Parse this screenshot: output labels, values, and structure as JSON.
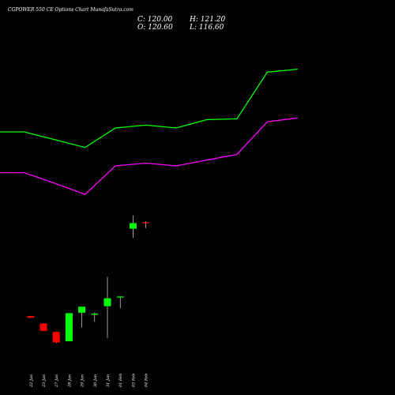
{
  "chart_data": {
    "type": "candlestick",
    "title": "CGPOWER 550 CE Options Chart MunafaSutra.com",
    "ohlc_readout": {
      "close_label": "C: 120.00",
      "open_label": "O: 120.60",
      "high_label": "H: 121.20",
      "low_label": "L: 116.60"
    },
    "categories": [
      "22 Jan",
      "23 Jan",
      "27 Jan",
      "28 Jan",
      "29 Jan",
      "30 Jan",
      "31 Jan",
      "01 Feb",
      "03 Feb",
      "04 Feb"
    ],
    "candles": [
      {
        "date": "22 Jan",
        "open": 17.0,
        "high": 17.2,
        "low": 15.8,
        "close": 15.9
      },
      {
        "date": "23 Jan",
        "open": 12.0,
        "high": 12.2,
        "low": 6.9,
        "close": 7.0
      },
      {
        "date": "27 Jan",
        "open": 6.3,
        "high": 6.5,
        "low": -1.2,
        "close": -0.8
      },
      {
        "date": "28 Jan",
        "open": 0.0,
        "high": 19.0,
        "low": 0.0,
        "close": 19.0
      },
      {
        "date": "29 Jan",
        "open": 19.3,
        "high": 23.4,
        "low": 9.3,
        "close": 23.4
      },
      {
        "date": "30 Jan",
        "open": 18.0,
        "high": 19.5,
        "low": 13.2,
        "close": 18.7
      },
      {
        "date": "31 Jan",
        "open": 23.7,
        "high": 43.5,
        "low": 2.0,
        "close": 29.1
      },
      {
        "date": "01 Feb",
        "open": 29.6,
        "high": 30.3,
        "low": 22.4,
        "close": 30.3
      },
      {
        "date": "03 Feb",
        "open": 76.2,
        "high": 85.2,
        "low": 70.0,
        "close": 80.0
      },
      {
        "date": "04 Feb",
        "open": 80.6,
        "high": 81.2,
        "low": 76.6,
        "close": 80.0
      }
    ],
    "upper_band": [
      141.7,
      141.7,
      136.5,
      131.2,
      144.4,
      146.3,
      144.4,
      150.0,
      150.6,
      182.2,
      184.2
    ],
    "lower_band": [
      114.1,
      114.1,
      107.0,
      99.4,
      118.7,
      120.6,
      118.7,
      122.6,
      126.5,
      148.6,
      151.2
    ],
    "band_x": [
      "",
      "22 Jan",
      "",
      "27 Jan",
      "28 Jan",
      "",
      "",
      "",
      "",
      "",
      ""
    ],
    "ylim": [
      -15,
      215
    ],
    "grid": false,
    "colors": {
      "up": "#00ff00",
      "down": "#ff0000",
      "upper_band": "#00ff00",
      "lower_band": "#ff00ff",
      "background": "#000000",
      "text": "#ffffff",
      "wick": "#ffffff"
    }
  }
}
